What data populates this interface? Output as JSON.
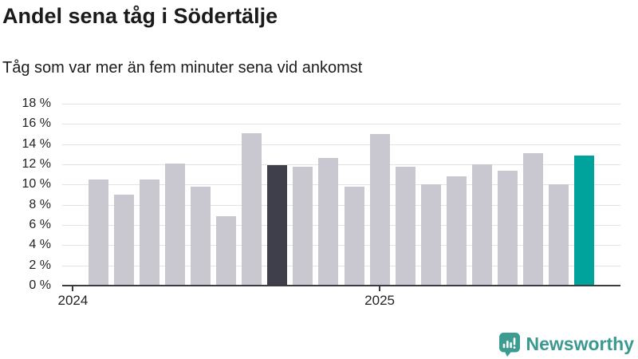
{
  "header": {
    "title": "Andel sena tåg i Södertälje",
    "subtitle": "Tåg som var mer än fem minuter sena vid ankomst"
  },
  "chart_data": {
    "type": "bar",
    "title": "Andel sena tåg i Södertälje",
    "subtitle": "Tåg som var mer än fem minuter sena vid ankomst",
    "unit": "%",
    "months": [
      "2024-02",
      "2024-03",
      "2024-04",
      "2024-05",
      "2024-06",
      "2024-07",
      "2024-08",
      "2024-09",
      "2024-10",
      "2024-11",
      "2024-12",
      "2025-01",
      "2025-02",
      "2025-03",
      "2025-04",
      "2025-05",
      "2025-06",
      "2025-07",
      "2025-08",
      "2025-09"
    ],
    "values": [
      10.5,
      9.0,
      10.5,
      12.1,
      9.8,
      6.9,
      15.1,
      11.9,
      11.8,
      12.6,
      9.8,
      15.0,
      11.8,
      10.0,
      10.8,
      12.0,
      11.4,
      13.1,
      10.0,
      12.9
    ],
    "highlight_dark_index": 7,
    "highlight_teal_index": 19,
    "xlabel": "",
    "ylabel": "",
    "ylim": [
      0,
      18
    ],
    "ytick_step": 2,
    "ytick_suffix": " %",
    "x_tick_labels": [
      "2024",
      "2025"
    ],
    "grid": true,
    "legend": "none",
    "colors": {
      "bar_default": "#c9c8d1",
      "bar_dark": "#3f3e4b",
      "bar_teal": "#00a39b",
      "gridline": "#e3e3e3",
      "axis": "#3b3b40",
      "text": "#1a1a1a"
    }
  },
  "footer": {
    "brand": "Newsworthy",
    "brand_color": "#3a9a8f",
    "icon": "bar-chart-speech-bubble-icon",
    "icon_color": "#3d9c91"
  }
}
